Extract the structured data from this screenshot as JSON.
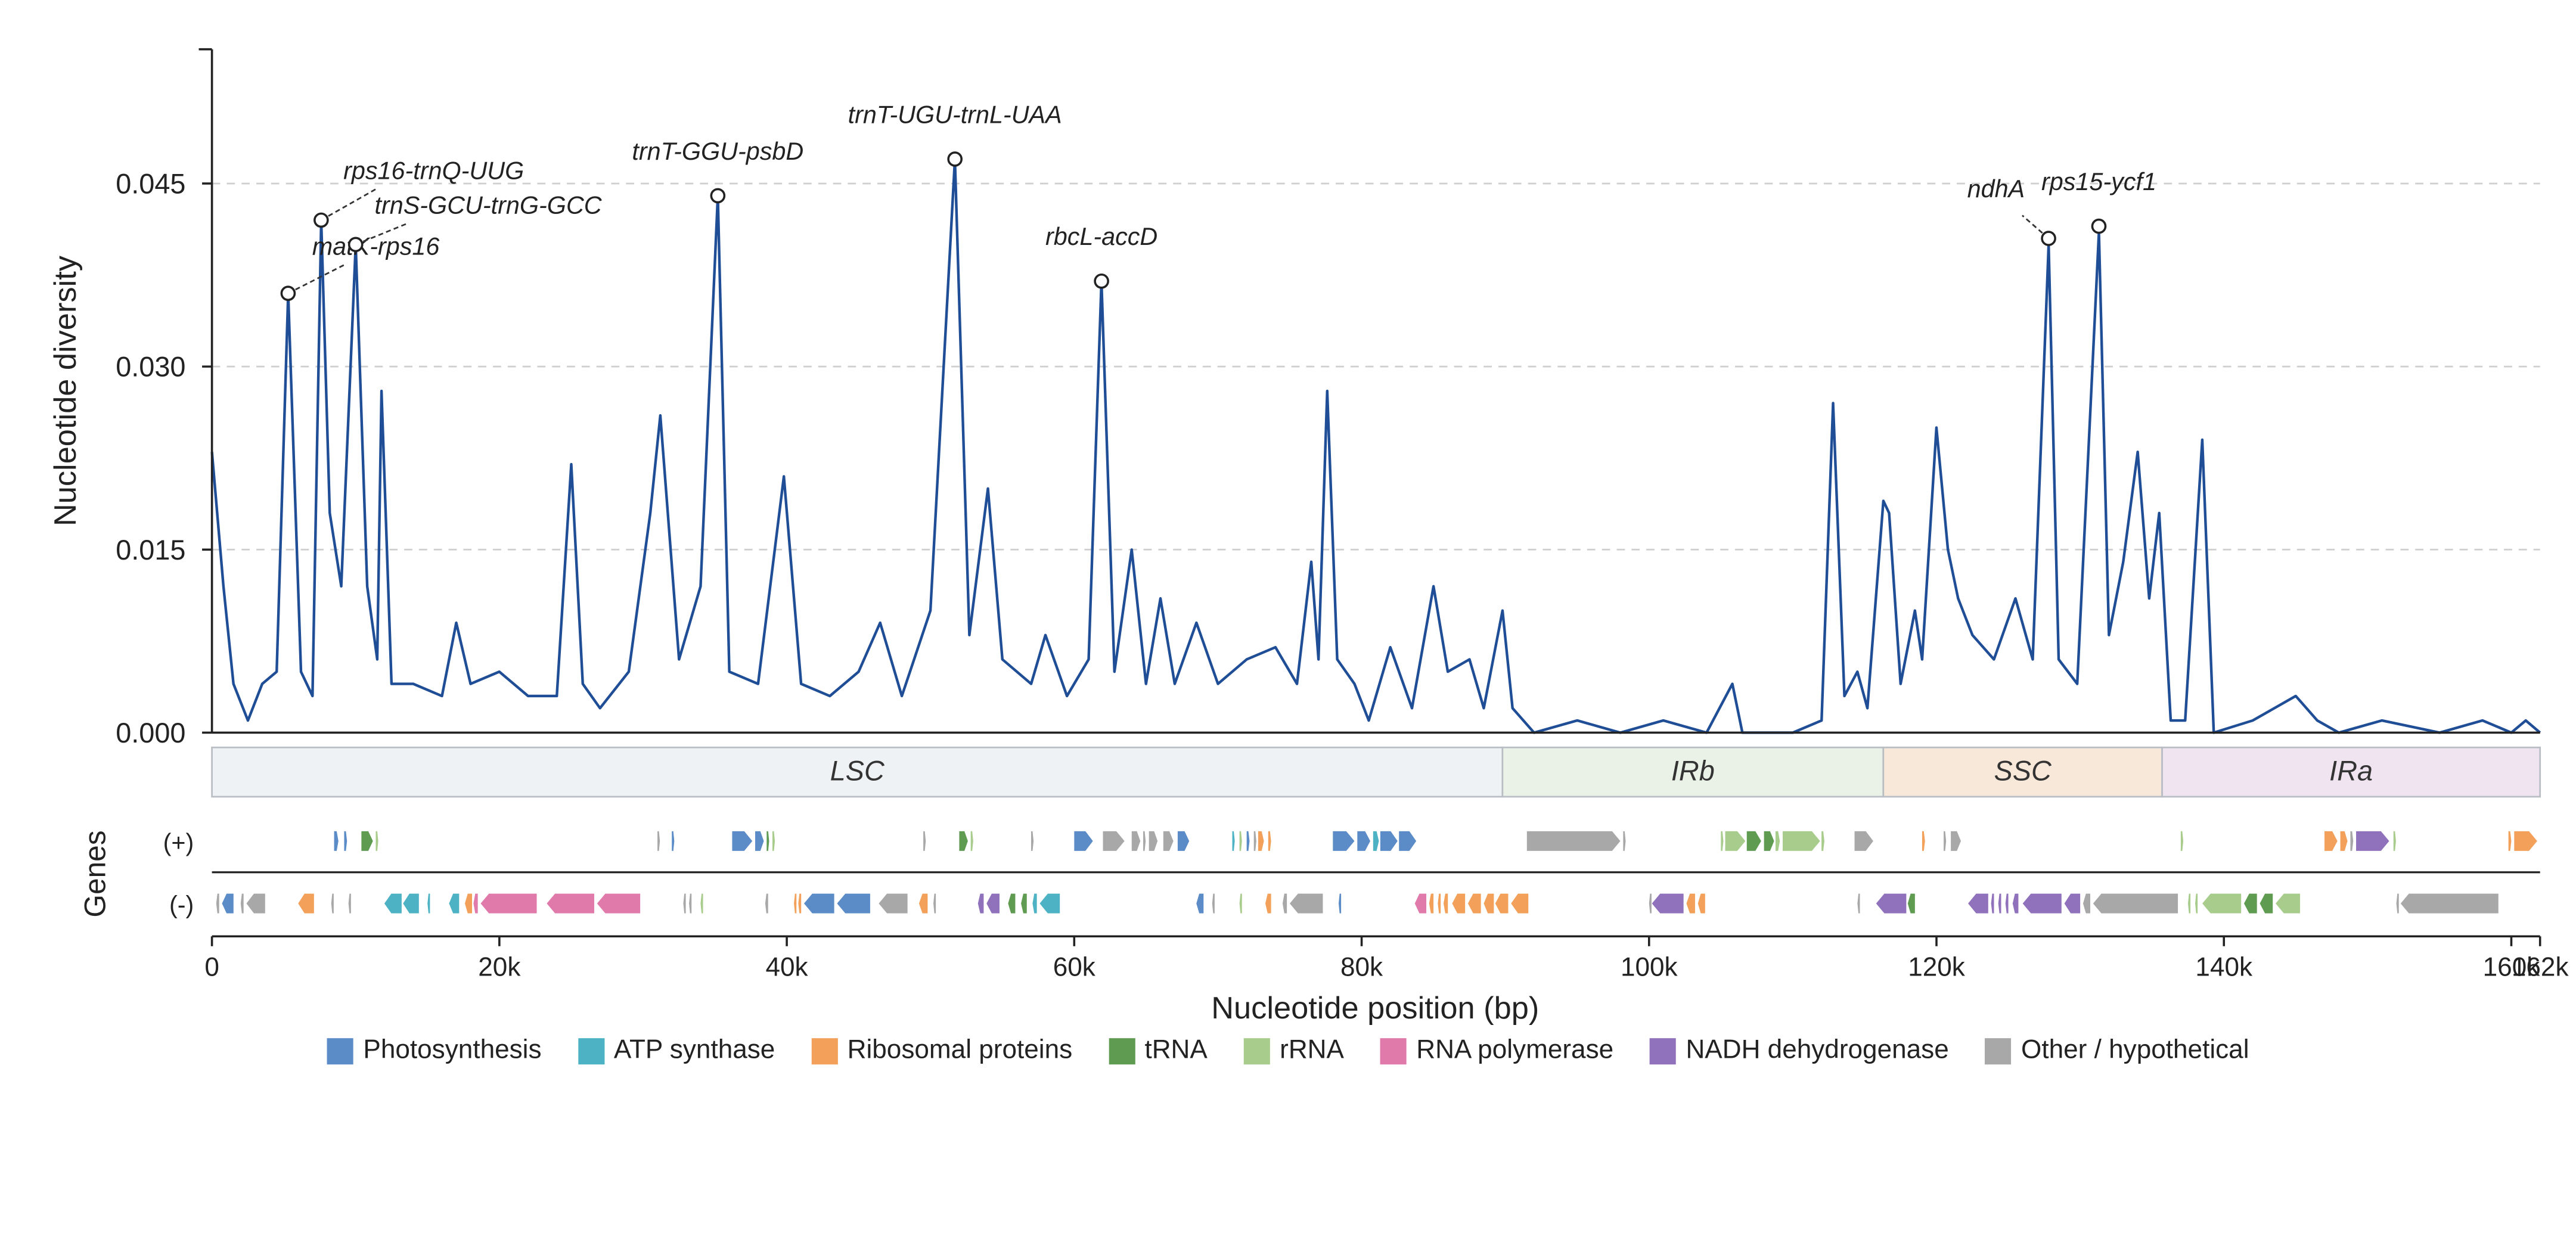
{
  "chart_data": {
    "type": "line",
    "ylabel": "Nucleotide diversity",
    "xlabel": "Nucleotide position (bp)",
    "xlim": [
      0,
      162000
    ],
    "ylim": [
      0,
      0.056
    ],
    "yticks": [
      0.0,
      0.015,
      0.03,
      0.045
    ],
    "ytick_labels": [
      "0.000",
      "0.015",
      "0.030",
      "0.045"
    ],
    "xticks": [
      0,
      20000,
      40000,
      60000,
      80000,
      100000,
      120000,
      140000,
      160000,
      162000
    ],
    "xtick_labels": [
      "0",
      "20k",
      "40k",
      "60k",
      "80k",
      "100k",
      "120k",
      "140k",
      "160k",
      "162k"
    ],
    "grid": "horizontal dashed at y ticks",
    "line_color": "#1f4e96",
    "series_control_points": [
      [
        0,
        0.023
      ],
      [
        800,
        0.012
      ],
      [
        1500,
        0.004
      ],
      [
        2500,
        0.001
      ],
      [
        3500,
        0.004
      ],
      [
        4500,
        0.005
      ],
      [
        5300,
        0.036
      ],
      [
        6200,
        0.005
      ],
      [
        7000,
        0.003
      ],
      [
        7600,
        0.042
      ],
      [
        8200,
        0.018
      ],
      [
        9000,
        0.012
      ],
      [
        10000,
        0.04
      ],
      [
        10800,
        0.012
      ],
      [
        11500,
        0.006
      ],
      [
        11800,
        0.028
      ],
      [
        12500,
        0.004
      ],
      [
        14000,
        0.004
      ],
      [
        16000,
        0.003
      ],
      [
        17000,
        0.009
      ],
      [
        18000,
        0.004
      ],
      [
        20000,
        0.005
      ],
      [
        22000,
        0.003
      ],
      [
        24000,
        0.003
      ],
      [
        25000,
        0.022
      ],
      [
        25800,
        0.004
      ],
      [
        27000,
        0.002
      ],
      [
        29000,
        0.005
      ],
      [
        30500,
        0.018
      ],
      [
        31200,
        0.026
      ],
      [
        32500,
        0.006
      ],
      [
        34000,
        0.012
      ],
      [
        35200,
        0.044
      ],
      [
        36000,
        0.005
      ],
      [
        38000,
        0.004
      ],
      [
        39800,
        0.021
      ],
      [
        41000,
        0.004
      ],
      [
        43000,
        0.003
      ],
      [
        45000,
        0.005
      ],
      [
        46500,
        0.009
      ],
      [
        48000,
        0.003
      ],
      [
        50000,
        0.01
      ],
      [
        51700,
        0.047
      ],
      [
        52700,
        0.008
      ],
      [
        54000,
        0.02
      ],
      [
        55000,
        0.006
      ],
      [
        57000,
        0.004
      ],
      [
        58000,
        0.008
      ],
      [
        59500,
        0.003
      ],
      [
        61000,
        0.006
      ],
      [
        61900,
        0.037
      ],
      [
        62800,
        0.005
      ],
      [
        64000,
        0.015
      ],
      [
        65000,
        0.004
      ],
      [
        66000,
        0.011
      ],
      [
        67000,
        0.004
      ],
      [
        68500,
        0.009
      ],
      [
        70000,
        0.004
      ],
      [
        72000,
        0.006
      ],
      [
        74000,
        0.007
      ],
      [
        75500,
        0.004
      ],
      [
        76500,
        0.014
      ],
      [
        77000,
        0.006
      ],
      [
        77600,
        0.028
      ],
      [
        78300,
        0.006
      ],
      [
        79500,
        0.004
      ],
      [
        80500,
        0.001
      ],
      [
        82000,
        0.007
      ],
      [
        83500,
        0.002
      ],
      [
        85000,
        0.012
      ],
      [
        86000,
        0.005
      ],
      [
        87500,
        0.006
      ],
      [
        88500,
        0.002
      ],
      [
        89800,
        0.01
      ],
      [
        90500,
        0.002
      ],
      [
        92000,
        0.0
      ],
      [
        95000,
        0.001
      ],
      [
        98000,
        0.0
      ],
      [
        101000,
        0.001
      ],
      [
        104000,
        0.0
      ],
      [
        105800,
        0.004
      ],
      [
        106500,
        0.0
      ],
      [
        110000,
        0.0
      ],
      [
        112000,
        0.001
      ],
      [
        112800,
        0.027
      ],
      [
        113600,
        0.003
      ],
      [
        114500,
        0.005
      ],
      [
        115200,
        0.002
      ],
      [
        116300,
        0.019
      ],
      [
        116700,
        0.018
      ],
      [
        117500,
        0.004
      ],
      [
        118500,
        0.01
      ],
      [
        119000,
        0.006
      ],
      [
        120000,
        0.025
      ],
      [
        120800,
        0.015
      ],
      [
        121500,
        0.011
      ],
      [
        122500,
        0.008
      ],
      [
        124000,
        0.006
      ],
      [
        125500,
        0.011
      ],
      [
        126700,
        0.006
      ],
      [
        127800,
        0.04
      ],
      [
        128500,
        0.006
      ],
      [
        129800,
        0.004
      ],
      [
        131300,
        0.041
      ],
      [
        132000,
        0.008
      ],
      [
        133000,
        0.014
      ],
      [
        134000,
        0.023
      ],
      [
        134800,
        0.011
      ],
      [
        135500,
        0.018
      ],
      [
        136300,
        0.001
      ],
      [
        137300,
        0.001
      ],
      [
        138500,
        0.024
      ],
      [
        139300,
        0.0
      ],
      [
        142000,
        0.001
      ],
      [
        145000,
        0.003
      ],
      [
        146500,
        0.001
      ],
      [
        148000,
        0.0
      ],
      [
        151000,
        0.001
      ],
      [
        155000,
        0.0
      ],
      [
        158000,
        0.001
      ],
      [
        160000,
        0.0
      ],
      [
        161000,
        0.001
      ],
      [
        162000,
        0.0
      ]
    ],
    "peaks": [
      {
        "label": "matK-rps16",
        "x": 5300,
        "y": 0.036
      },
      {
        "label": "rps16-trnQ-UUG",
        "x": 7600,
        "y": 0.042
      },
      {
        "label": "trnS-GCU-trnG-GCC",
        "x": 10000,
        "y": 0.04
      },
      {
        "label": "trnT-GGU-psbD",
        "x": 35200,
        "y": 0.044
      },
      {
        "label": "trnT-UGU-trnL-UAA",
        "x": 51700,
        "y": 0.047
      },
      {
        "label": "rbcL-accD",
        "x": 61900,
        "y": 0.037
      },
      {
        "label": "ndhA",
        "x": 127800,
        "y": 0.0405
      },
      {
        "label": "rps15-ycf1",
        "x": 131300,
        "y": 0.0415
      }
    ],
    "regions": [
      {
        "name": "LSC",
        "start": 0,
        "end": 89800,
        "color": "#eef2f5"
      },
      {
        "name": "IRb",
        "start": 89800,
        "end": 116300,
        "color": "#eaf1e6"
      },
      {
        "name": "SSC",
        "start": 116300,
        "end": 135700,
        "color": "#f8e8da"
      },
      {
        "name": "IRa",
        "start": 135700,
        "end": 162000,
        "color": "#efe4f0"
      }
    ],
    "gene_track_title": "Genes",
    "strand_labels": [
      "(+)",
      "(-)"
    ],
    "categories": [
      {
        "name": "Photosynthesis",
        "color": "#5b8cc8"
      },
      {
        "name": "ATP synthase",
        "color": "#4db3c4"
      },
      {
        "name": "Ribosomal proteins",
        "color": "#f2a05a"
      },
      {
        "name": "tRNA",
        "color": "#5f9c52"
      },
      {
        "name": "rRNA",
        "color": "#a8cc8c"
      },
      {
        "name": "RNA polymerase",
        "color": "#e07aab"
      },
      {
        "name": "NADH dehydrogenase",
        "color": "#8f72bb"
      },
      {
        "name": "Other / hypothetical",
        "color": "#a8a8a8"
      }
    ],
    "genes_plus": [
      [
        8500,
        8800,
        0
      ],
      [
        9200,
        9400,
        0
      ],
      [
        10400,
        11200,
        3
      ],
      [
        11400,
        11500,
        4
      ],
      [
        31000,
        31100,
        7
      ],
      [
        32000,
        32100,
        0
      ],
      [
        36200,
        37600,
        0
      ],
      [
        37800,
        38400,
        0
      ],
      [
        38600,
        38700,
        3
      ],
      [
        39000,
        39100,
        4
      ],
      [
        49500,
        49600,
        7
      ],
      [
        52000,
        52600,
        3
      ],
      [
        52800,
        52900,
        4
      ],
      [
        57000,
        57100,
        7
      ],
      [
        60000,
        61300,
        0
      ],
      [
        62000,
        63500,
        7
      ],
      [
        64000,
        64600,
        7
      ],
      [
        64800,
        64900,
        7
      ],
      [
        65200,
        65800,
        7
      ],
      [
        66200,
        66900,
        7
      ],
      [
        67200,
        68000,
        0
      ],
      [
        71000,
        71100,
        1
      ],
      [
        71500,
        71600,
        4
      ],
      [
        72000,
        72200,
        0
      ],
      [
        72500,
        72600,
        7
      ],
      [
        72800,
        73200,
        2
      ],
      [
        73500,
        73700,
        2
      ],
      [
        78000,
        79500,
        0
      ],
      [
        79700,
        80600,
        0
      ],
      [
        80800,
        81200,
        1
      ],
      [
        81300,
        82500,
        0
      ],
      [
        82600,
        83800,
        0
      ],
      [
        91500,
        98000,
        7
      ],
      [
        98200,
        98300,
        7
      ],
      [
        105000,
        105100,
        4
      ],
      [
        105300,
        106700,
        4
      ],
      [
        106800,
        107800,
        3
      ],
      [
        108000,
        108700,
        3
      ],
      [
        108800,
        109100,
        4
      ],
      [
        109300,
        111900,
        4
      ],
      [
        112000,
        112200,
        4
      ],
      [
        114300,
        115600,
        7
      ],
      [
        119000,
        119200,
        2
      ],
      [
        120500,
        120600,
        7
      ],
      [
        121000,
        121700,
        7
      ],
      [
        137000,
        137100,
        4
      ],
      [
        147000,
        147900,
        2
      ],
      [
        148100,
        148600,
        2
      ],
      [
        148800,
        149000,
        7
      ],
      [
        149200,
        151500,
        6
      ],
      [
        151800,
        151900,
        4
      ],
      [
        159800,
        160000,
        2
      ],
      [
        160200,
        161800,
        2
      ]
    ],
    "genes_minus": [
      [
        300,
        500,
        7
      ],
      [
        700,
        1500,
        0
      ],
      [
        2000,
        2200,
        7
      ],
      [
        2400,
        3700,
        7
      ],
      [
        6000,
        7100,
        2
      ],
      [
        8300,
        8400,
        7
      ],
      [
        9500,
        9600,
        7
      ],
      [
        12000,
        13200,
        1
      ],
      [
        13300,
        14400,
        1
      ],
      [
        15000,
        15100,
        1
      ],
      [
        16500,
        17200,
        1
      ],
      [
        17600,
        18100,
        2
      ],
      [
        18200,
        18500,
        5
      ],
      [
        18700,
        22600,
        5
      ],
      [
        23300,
        26600,
        5
      ],
      [
        26800,
        29800,
        5
      ],
      [
        32800,
        32900,
        7
      ],
      [
        33200,
        33300,
        7
      ],
      [
        34000,
        34100,
        4
      ],
      [
        38500,
        38700,
        7
      ],
      [
        40500,
        40600,
        2
      ],
      [
        40800,
        41000,
        2
      ],
      [
        41200,
        43300,
        0
      ],
      [
        43500,
        45800,
        0
      ],
      [
        46400,
        48400,
        7
      ],
      [
        49200,
        49800,
        2
      ],
      [
        50200,
        50300,
        7
      ],
      [
        53300,
        53700,
        6
      ],
      [
        53900,
        54800,
        6
      ],
      [
        55400,
        55900,
        3
      ],
      [
        56300,
        56700,
        3
      ],
      [
        57100,
        57400,
        1
      ],
      [
        57600,
        59000,
        1
      ],
      [
        68500,
        69000,
        0
      ],
      [
        69600,
        69700,
        7
      ],
      [
        71500,
        71600,
        4
      ],
      [
        73300,
        73700,
        2
      ],
      [
        74500,
        74800,
        7
      ],
      [
        75000,
        77300,
        7
      ],
      [
        78400,
        78500,
        0
      ],
      [
        83700,
        84500,
        5
      ],
      [
        84700,
        85000,
        2
      ],
      [
        85300,
        85500,
        2
      ],
      [
        85700,
        86000,
        2
      ],
      [
        86300,
        87200,
        2
      ],
      [
        87400,
        88300,
        2
      ],
      [
        88500,
        89200,
        2
      ],
      [
        89300,
        90200,
        2
      ],
      [
        90400,
        91600,
        2
      ],
      [
        100000,
        100100,
        7
      ],
      [
        100200,
        102400,
        6
      ],
      [
        102600,
        103200,
        2
      ],
      [
        103400,
        103900,
        2
      ],
      [
        114500,
        114600,
        7
      ],
      [
        115800,
        117900,
        6
      ],
      [
        118000,
        118500,
        3
      ],
      [
        122200,
        123600,
        6
      ],
      [
        123800,
        124000,
        6
      ],
      [
        124300,
        124500,
        6
      ],
      [
        124800,
        125000,
        6
      ],
      [
        125300,
        125700,
        6
      ],
      [
        126000,
        128700,
        6
      ],
      [
        128900,
        130000,
        6
      ],
      [
        130200,
        130700,
        7
      ],
      [
        130900,
        136800,
        7
      ],
      [
        137500,
        137600,
        4
      ],
      [
        138000,
        138100,
        4
      ],
      [
        138500,
        141200,
        4
      ],
      [
        141400,
        142300,
        3
      ],
      [
        142500,
        143400,
        3
      ],
      [
        143600,
        145300,
        4
      ],
      [
        152000,
        152100,
        7
      ],
      [
        152300,
        159100,
        7
      ]
    ]
  },
  "legend": [
    {
      "label": "Photosynthesis",
      "color": "#5b8cc8"
    },
    {
      "label": "ATP synthase",
      "color": "#4db3c4"
    },
    {
      "label": "Ribosomal proteins",
      "color": "#f2a05a"
    },
    {
      "label": "tRNA",
      "color": "#5f9c52"
    },
    {
      "label": "rRNA",
      "color": "#a8cc8c"
    },
    {
      "label": "RNA polymerase",
      "color": "#e07aab"
    },
    {
      "label": "NADH dehydrogenase",
      "color": "#8f72bb"
    },
    {
      "label": "Other / hypothetical",
      "color": "#a8a8a8"
    }
  ]
}
